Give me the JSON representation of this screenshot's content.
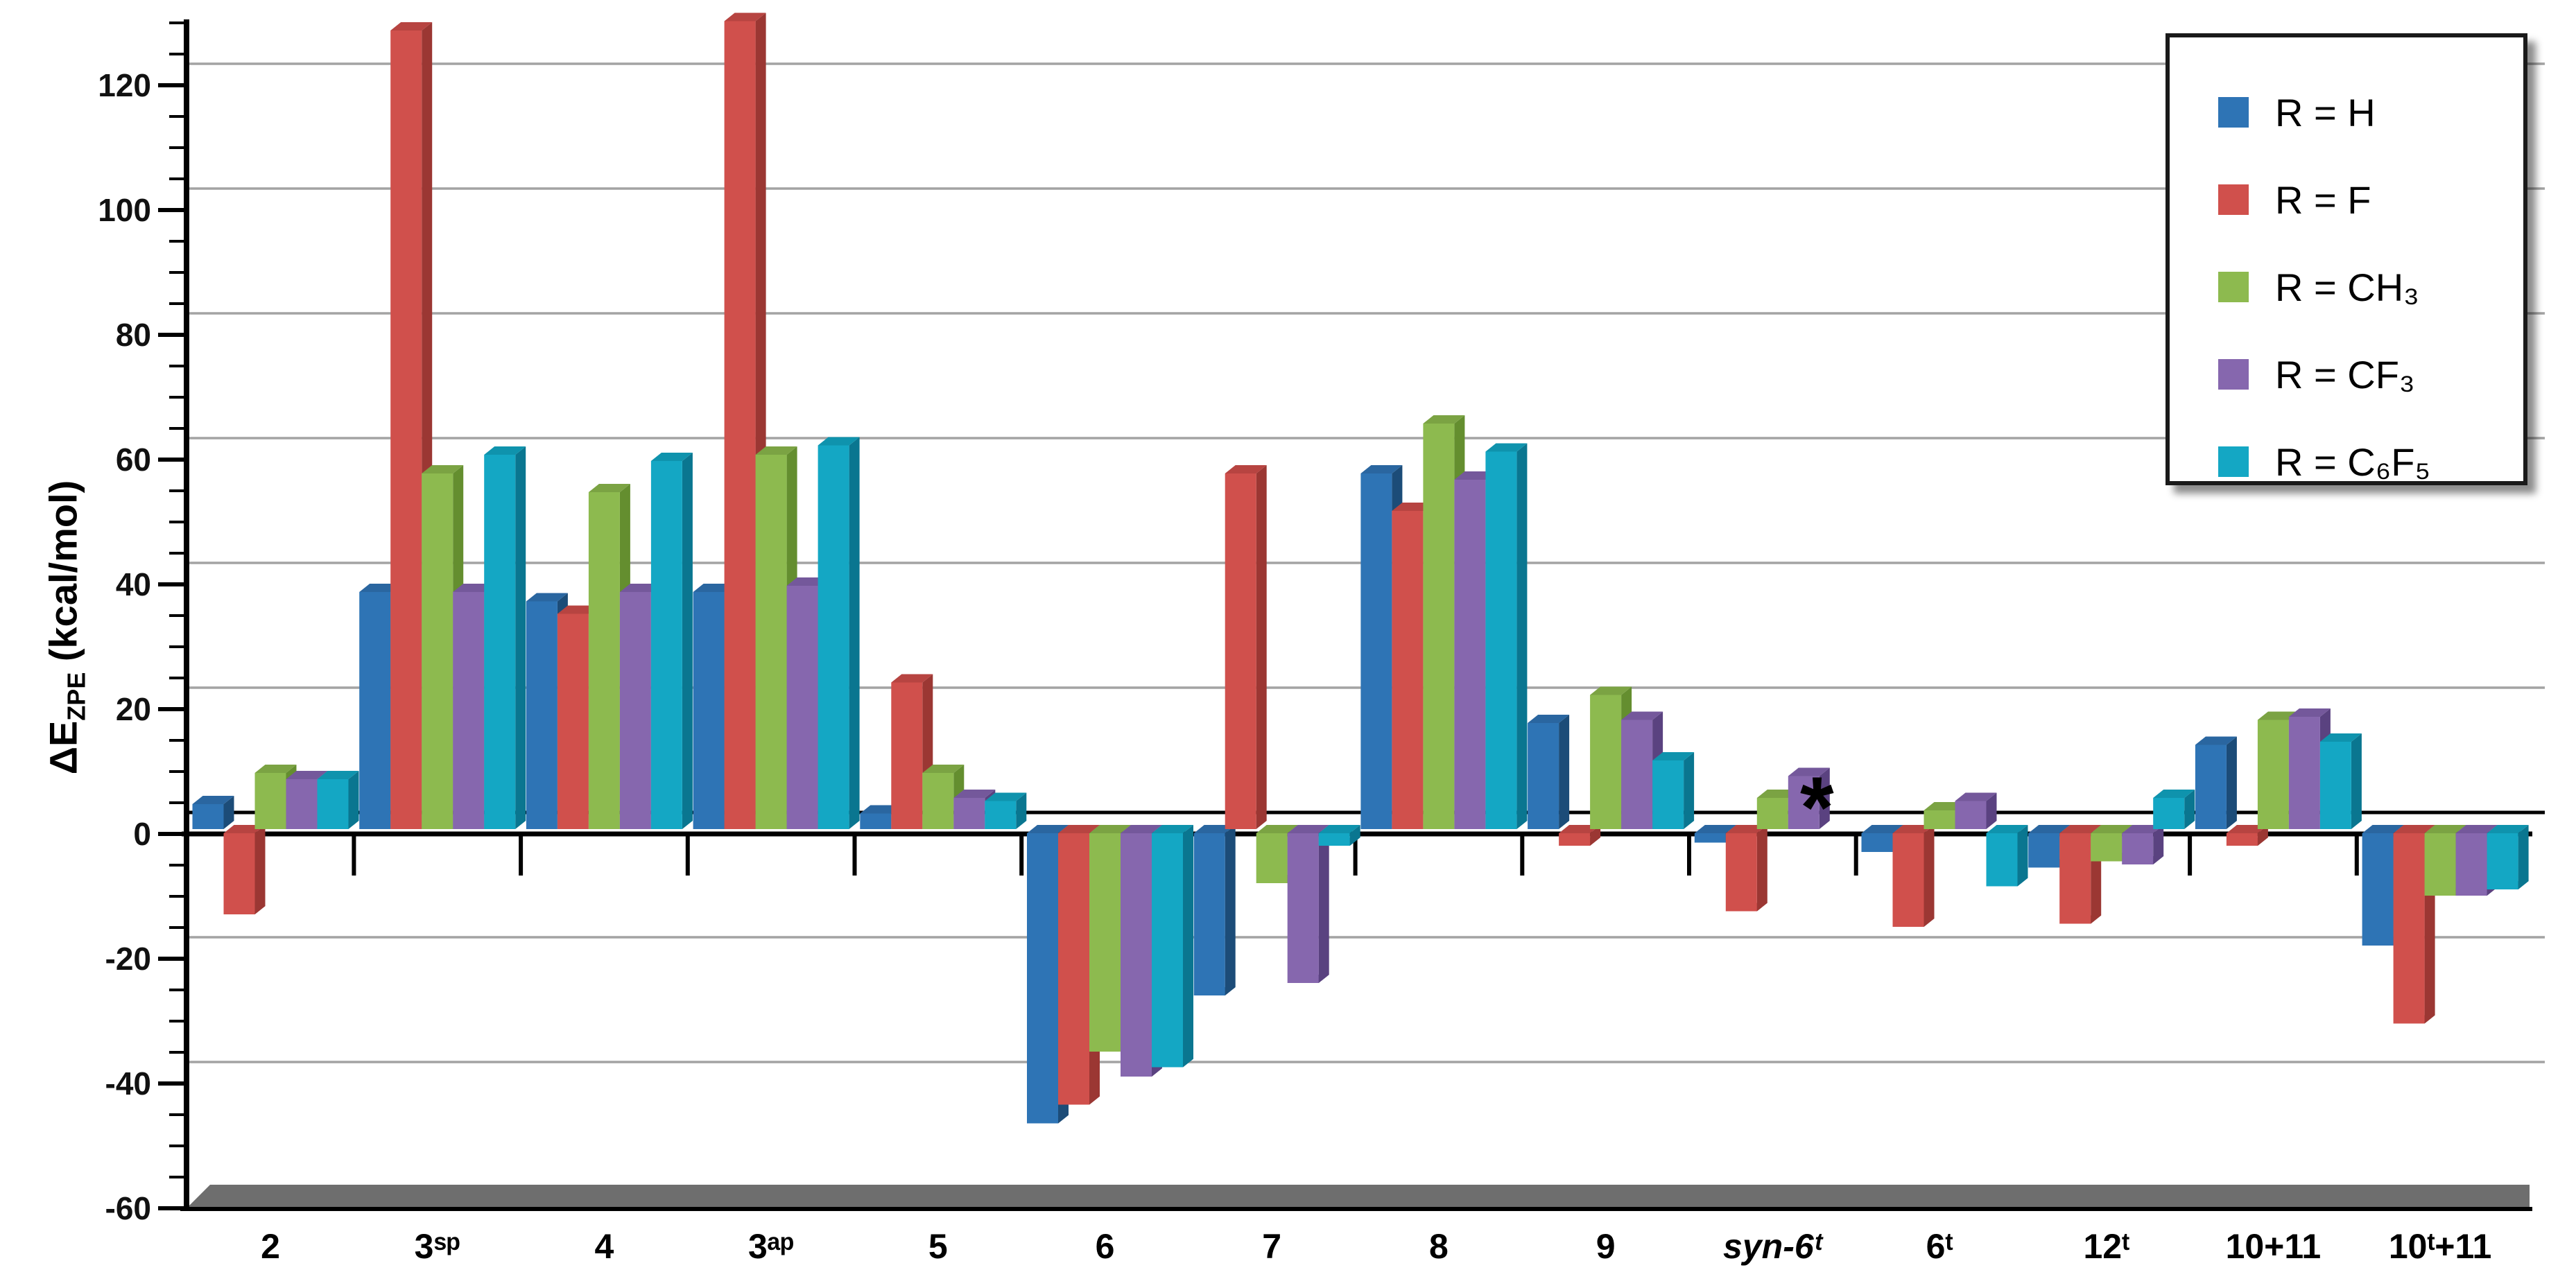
{
  "chart_data": {
    "type": "bar",
    "title": "",
    "ylabel_main": "ΔE",
    "ylabel_sub": "ZPE",
    "ylabel_unit": " (kcal/mol)",
    "y_axis": {
      "min": -60,
      "max": 120,
      "tick_step": 20,
      "minor_tick_step": 5,
      "tick_labels": [
        "-60",
        "-40",
        "-20",
        "0",
        "20",
        "40",
        "60",
        "80",
        "100",
        "120"
      ],
      "grid": true,
      "gridline_values": [
        -40,
        -20,
        20,
        40,
        60,
        80,
        100,
        120
      ]
    },
    "legend_position": "top-right",
    "categories": [
      {
        "id": "2",
        "label": "2"
      },
      {
        "id": "3sp",
        "label": "3ˢᵖ"
      },
      {
        "id": "4",
        "label": "4"
      },
      {
        "id": "3ap",
        "label": "3ᵃᵖ"
      },
      {
        "id": "5",
        "label": "5"
      },
      {
        "id": "6",
        "label": "6"
      },
      {
        "id": "7",
        "label": "7"
      },
      {
        "id": "8",
        "label": "8"
      },
      {
        "id": "9",
        "label": "9"
      },
      {
        "id": "syn-6t",
        "label": "syn-6ᵗ",
        "italic": true
      },
      {
        "id": "6t",
        "label": "6ᵗ"
      },
      {
        "id": "12t",
        "label": "12ᵗ"
      },
      {
        "id": "10+11",
        "label": "10+11"
      },
      {
        "id": "10t+11",
        "label": "10ᵗ+11"
      }
    ],
    "series": [
      {
        "name": "R = H",
        "color": "#2E74B5",
        "color_top": "#2A66A0",
        "color_side": "#1C4C78",
        "values": [
          4,
          38,
          36.5,
          38,
          2.5,
          -46.5,
          -26,
          57,
          17,
          -1.5,
          -3,
          -5.5,
          13.5,
          -18
        ]
      },
      {
        "name": "R = F",
        "color": "#D0504C",
        "color_top": "#B74441",
        "color_side": "#9B3733",
        "values": [
          -13,
          128,
          34.5,
          129.5,
          23.5,
          -43.5,
          57,
          51,
          -2,
          -12.5,
          -15,
          -14.5,
          -2,
          -30.5
        ]
      },
      {
        "name": "R = CH₃",
        "color": "#8DBA4F",
        "color_top": "#7BA343",
        "color_side": "#648E2F",
        "values": [
          9,
          57,
          54,
          60,
          9,
          -35,
          -8,
          65,
          21.5,
          5,
          3,
          -4.5,
          17.5,
          -10
        ]
      },
      {
        "name": "R = CF₃",
        "color": "#8667AE",
        "color_top": "#74589B",
        "color_side": "#5A4280",
        "values": [
          8,
          38,
          38,
          39,
          5,
          -39,
          -24,
          56,
          17.5,
          8.5,
          4.5,
          -5,
          18,
          -10
        ]
      },
      {
        "name": "R = C₆F₅",
        "color": "#14A7C4",
        "color_top": "#0F93AD",
        "color_side": "#0A7690",
        "values": [
          8,
          60,
          59,
          61.5,
          4.5,
          -37.5,
          -2,
          60.5,
          11,
          null,
          -8.5,
          5,
          14,
          -9
        ]
      }
    ],
    "annotations": [
      {
        "text": "*",
        "category": "syn-6t",
        "series": "R = C₆F₅",
        "meaning": "value not shown for R = C₆F₅ at syn-6ᵗ"
      }
    ],
    "colors": {
      "gridline": "#A3A3A3",
      "zero_line": "#000000",
      "floor": "#6E6E6E",
      "background": "#FFFFFF"
    }
  }
}
